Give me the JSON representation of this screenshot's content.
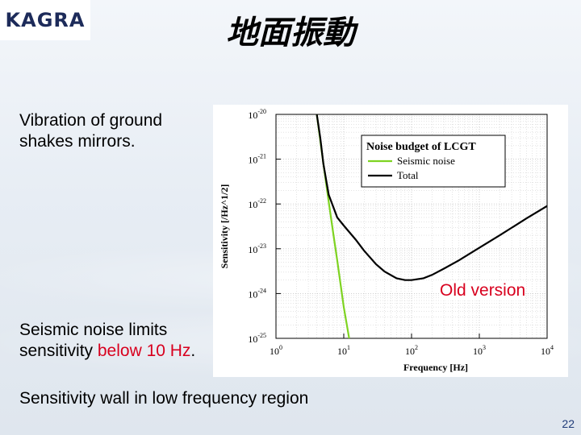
{
  "slide": {
    "logo_text": "KAGRA",
    "title": "地面振動",
    "caption_top": "Vibration of ground shakes mirrors.",
    "caption_mid_prefix": "Seismic noise limits sensitivity ",
    "caption_mid_highlight": "below 10 Hz",
    "caption_mid_suffix": ".",
    "caption_bottom": "Sensitivity wall in low frequency region",
    "annotation": "Old version",
    "slide_number": "22"
  },
  "colors": {
    "highlight": "#d8001e",
    "seismic": "#7ed321",
    "total": "#000000"
  },
  "chart_data": {
    "type": "line",
    "title": "Noise budget of LCGT",
    "xlabel": "Frequency [Hz]",
    "ylabel": "Sensitivity [/Hz^1/2]",
    "xscale": "log",
    "yscale": "log",
    "xlim": [
      1,
      10000
    ],
    "ylim": [
      1e-25,
      1e-20
    ],
    "x_ticks": [
      {
        "value": 1,
        "base": "10",
        "exp": "0"
      },
      {
        "value": 10,
        "base": "10",
        "exp": "1"
      },
      {
        "value": 100,
        "base": "10",
        "exp": "2"
      },
      {
        "value": 1000,
        "base": "10",
        "exp": "3"
      },
      {
        "value": 10000,
        "base": "10",
        "exp": "4"
      }
    ],
    "y_ticks": [
      {
        "value": 1e-20,
        "base": "10",
        "exp": "-20"
      },
      {
        "value": 1e-21,
        "base": "10",
        "exp": "-21"
      },
      {
        "value": 1e-22,
        "base": "10",
        "exp": "-22"
      },
      {
        "value": 1e-23,
        "base": "10",
        "exp": "-23"
      },
      {
        "value": 1e-24,
        "base": "10",
        "exp": "-24"
      },
      {
        "value": 1e-25,
        "base": "10",
        "exp": "-25"
      }
    ],
    "grid": true,
    "legend_position": "top-right",
    "series": [
      {
        "name": "Seismic noise",
        "color": "#7ed321",
        "x": [
          4,
          5,
          6,
          7,
          8,
          10,
          12
        ],
        "y": [
          1e-20,
          8e-22,
          1.1e-22,
          2.2e-23,
          5.5e-24,
          5e-25,
          1e-25
        ]
      },
      {
        "name": "Total",
        "color": "#000000",
        "x": [
          4,
          4.5,
          5,
          6,
          8,
          10,
          15,
          20,
          30,
          40,
          60,
          80,
          100,
          150,
          200,
          300,
          500,
          1000,
          2000,
          5000,
          10000
        ],
        "y": [
          1e-20,
          3e-21,
          8e-22,
          1.6e-22,
          5e-23,
          3.3e-23,
          1.6e-23,
          9e-24,
          4.5e-24,
          3.1e-24,
          2.2e-24,
          2e-24,
          2e-24,
          2.2e-24,
          2.6e-24,
          3.6e-24,
          5.5e-24,
          1.05e-23,
          2e-23,
          4.8e-23,
          9e-23
        ]
      }
    ]
  }
}
